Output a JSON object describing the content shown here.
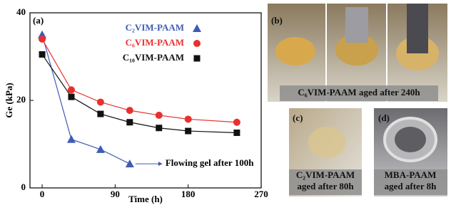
{
  "chart_data": {
    "type": "line",
    "panel_label": "(a)",
    "x_label": "Time (h)",
    "y_label": "Ge (kPa)",
    "xlim": [
      -15,
      270
    ],
    "xticks": [
      0,
      90,
      180,
      270
    ],
    "ylim": [
      0,
      40
    ],
    "yticks": [
      0,
      20,
      40
    ],
    "legend": "upper right",
    "series": [
      {
        "name": "C₂VIM-PAAM",
        "color": "#3f5bb5",
        "marker": "triangle",
        "x": [
          0,
          36,
          72,
          108
        ],
        "values": [
          35,
          11.1,
          8.8,
          5.5
        ]
      },
      {
        "name": "C₆VIM-PAAM",
        "color": "#e8312f",
        "marker": "circle",
        "x": [
          0,
          36,
          72,
          108,
          144,
          180,
          240
        ],
        "values": [
          34,
          22.4,
          19.6,
          17.7,
          16.6,
          15.7,
          15
        ]
      },
      {
        "name": "C₁₀VIM-PAAM",
        "color": "#111111",
        "marker": "square",
        "x": [
          0,
          36,
          72,
          108,
          144,
          180,
          240
        ],
        "values": [
          30.5,
          20.8,
          16.9,
          15,
          13.7,
          13,
          12.6
        ]
      }
    ],
    "annotation": "Flowing gel after 100h"
  },
  "photos": [
    {
      "label": "(b)",
      "caption": [
        "C₆VIM-PAAM aged after 240h"
      ]
    },
    {
      "label": "(c)",
      "caption": [
        "C₂VIM-PAAM",
        "aged after 80h"
      ]
    },
    {
      "label": "(d)",
      "caption": [
        "MBA-PAAM",
        "aged after 8h"
      ]
    }
  ]
}
